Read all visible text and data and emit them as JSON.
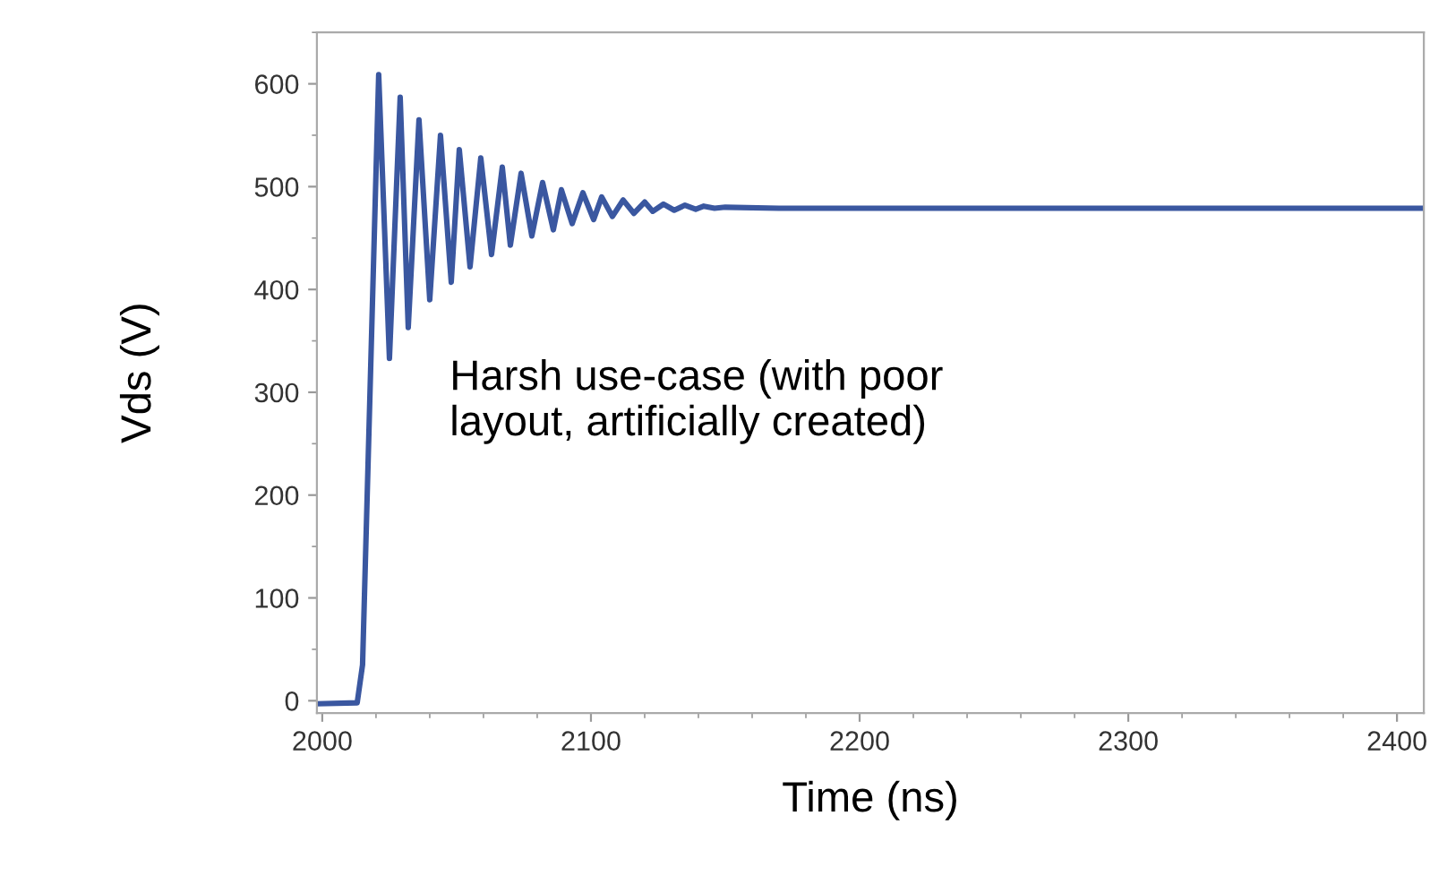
{
  "chart_data": {
    "type": "line",
    "xlabel": "Time (ns)",
    "ylabel": "Vds (V)",
    "annotations": [
      "Harsh use-case (with poor\nlayout, artificially created)"
    ],
    "xlim": [
      1998,
      2410
    ],
    "ylim": [
      -12,
      650
    ],
    "xticks": [
      2000,
      2100,
      2200,
      2300,
      2400
    ],
    "yticks": [
      0,
      100,
      200,
      300,
      400,
      500,
      600
    ],
    "grid": false,
    "legend": false,
    "marker": "none",
    "line_style": "solid",
    "series": [
      {
        "color": "#3a57a0",
        "x": [
          1998,
          2013,
          2015,
          2021,
          2025,
          2029,
          2032,
          2036,
          2040,
          2044,
          2048,
          2051,
          2055,
          2059,
          2063,
          2067,
          2070,
          2074,
          2078,
          2082,
          2086,
          2089,
          2093,
          2097,
          2101,
          2104,
          2108,
          2112,
          2116,
          2120,
          2123,
          2127,
          2131,
          2135,
          2139,
          2142,
          2146,
          2150,
          2170,
          2300,
          2410
        ],
        "values": [
          -3,
          -2,
          35,
          609,
          333,
          587,
          363,
          565,
          390,
          550,
          407,
          536,
          422,
          528,
          434,
          519,
          443,
          513,
          452,
          504,
          458,
          497,
          464,
          494,
          468,
          490,
          471,
          487,
          474,
          485,
          476,
          483,
          477,
          482,
          478,
          481,
          479,
          480,
          479,
          479,
          479
        ]
      }
    ]
  }
}
